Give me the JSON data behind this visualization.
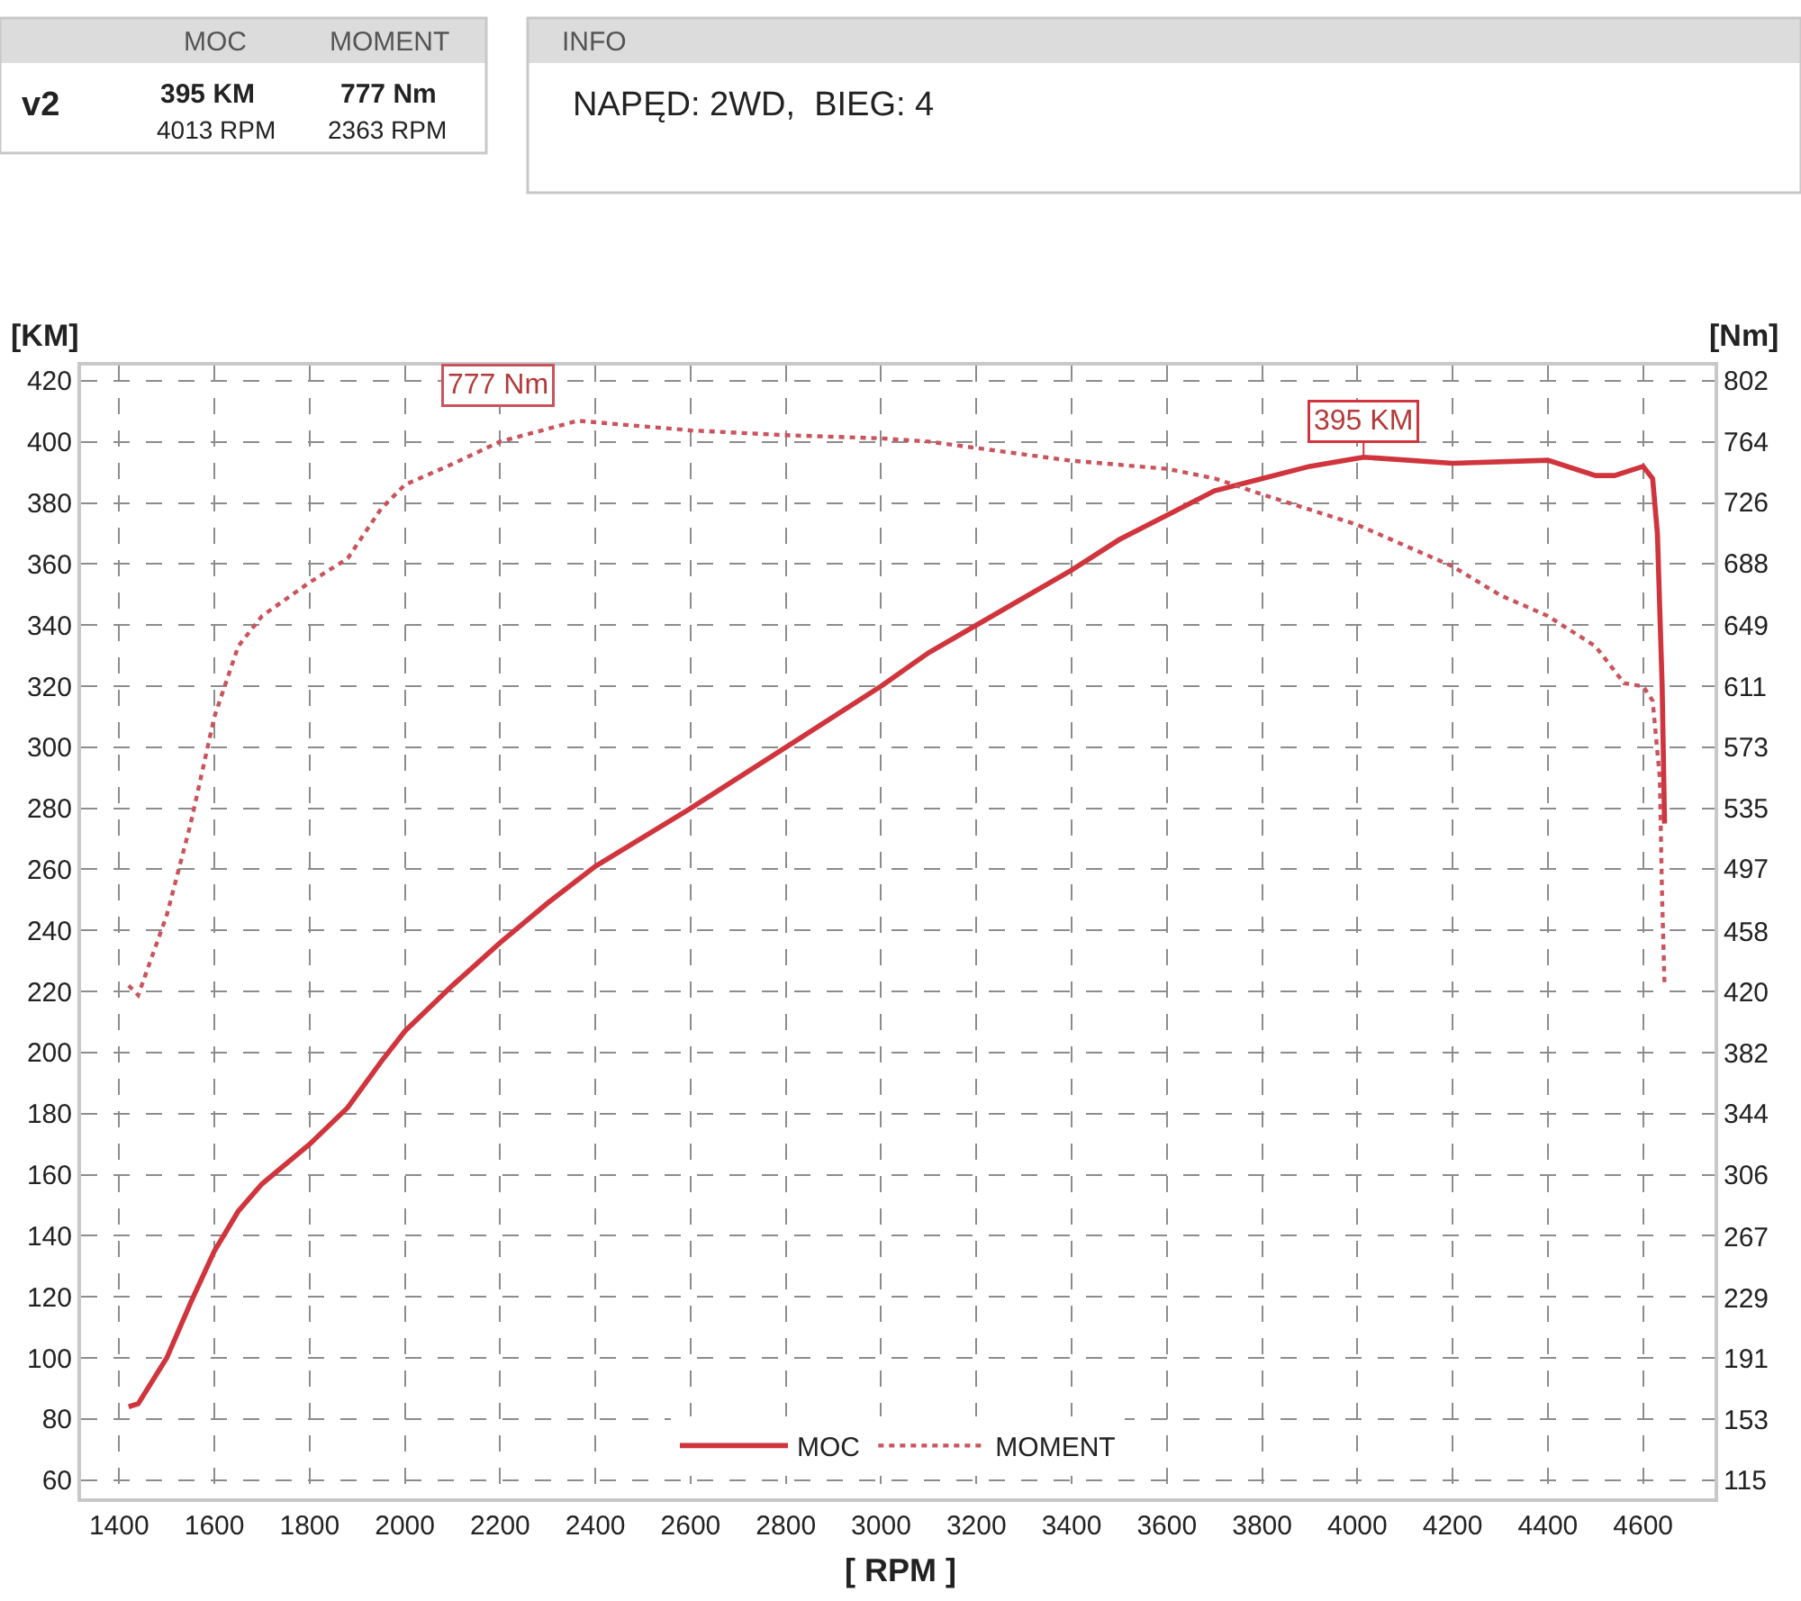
{
  "chart_data": {
    "type": "line",
    "xlabel": "[ RPM ]",
    "ylabel": "[KM]",
    "y2label": "[Nm]",
    "series": [
      {
        "name": "MOC",
        "color": "#d0343c",
        "line_style": "solid",
        "x": [
          1420,
          1440,
          1500,
          1550,
          1600,
          1650,
          1700,
          1800,
          1880,
          1950,
          2000,
          2100,
          2200,
          2300,
          2400,
          2600,
          2800,
          3000,
          3100,
          3200,
          3400,
          3500,
          3600,
          3700,
          3800,
          3900,
          4013,
          4200,
          4400,
          4500,
          4540,
          4600,
          4620,
          4630,
          4640,
          4645
        ],
        "values": [
          84,
          85,
          100,
          118,
          135,
          148,
          157,
          170,
          182,
          197,
          207,
          222,
          236,
          249,
          261,
          280,
          300,
          320,
          331,
          340,
          358,
          368,
          376,
          384,
          388,
          392,
          395,
          393,
          394,
          389,
          389,
          392,
          388,
          370,
          320,
          275
        ]
      },
      {
        "name": "MOMENT",
        "color": "#c9545c",
        "line_style": "dotted",
        "axis": "y2",
        "x": [
          1420,
          1440,
          1500,
          1550,
          1600,
          1650,
          1700,
          1800,
          1880,
          1950,
          2000,
          2100,
          2200,
          2363,
          2600,
          2800,
          3000,
          3100,
          3300,
          3400,
          3600,
          3700,
          3800,
          4000,
          4100,
          4200,
          4300,
          4400,
          4500,
          4560,
          4600,
          4620,
          4635,
          4640,
          4645
        ],
        "values": [
          424,
          418,
          468,
          525,
          592,
          636,
          655,
          676,
          691,
          722,
          737,
          750,
          764,
          777,
          771,
          768,
          766,
          764,
          756,
          752,
          747,
          741,
          731,
          712,
          699,
          686,
          668,
          655,
          636,
          613,
          611,
          602,
          554,
          478,
          424
        ]
      }
    ],
    "xlim": [
      1320,
      4750
    ],
    "xticks": [
      1400,
      1600,
      1800,
      2000,
      2200,
      2400,
      2600,
      2800,
      3000,
      3200,
      3400,
      3600,
      3800,
      4000,
      4200,
      4400,
      4600
    ],
    "ylim": [
      54,
      425
    ],
    "yticks": [
      60,
      80,
      100,
      120,
      140,
      160,
      180,
      200,
      220,
      240,
      260,
      280,
      300,
      320,
      340,
      360,
      380,
      400,
      420
    ],
    "y2lim": [
      103.5,
      811.5
    ],
    "y2ticks": [
      115,
      153,
      191,
      229,
      267,
      306,
      344,
      382,
      420,
      458,
      497,
      535,
      573,
      611,
      649,
      688,
      726,
      764,
      802
    ],
    "grid": true,
    "legend": "bottom",
    "marker": "none",
    "annotations": [
      "777 Nm",
      {
        "text": "395 KM",
        "x": 4013,
        "y": 395
      },
      "MOC",
      "MOMENT",
      "v2",
      "395 KM",
      "4013 RPM",
      "777 Nm",
      "2363 RPM",
      "INFO",
      "NAPĘD: 2WD,  BIEG: 4"
    ]
  }
}
